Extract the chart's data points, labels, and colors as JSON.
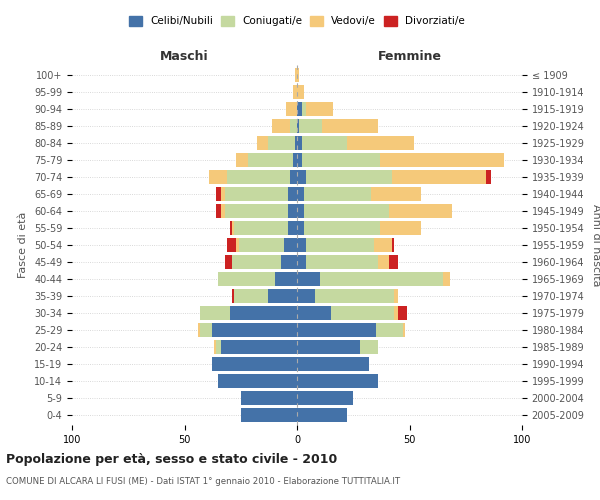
{
  "age_groups": [
    "0-4",
    "5-9",
    "10-14",
    "15-19",
    "20-24",
    "25-29",
    "30-34",
    "35-39",
    "40-44",
    "45-49",
    "50-54",
    "55-59",
    "60-64",
    "65-69",
    "70-74",
    "75-79",
    "80-84",
    "85-89",
    "90-94",
    "95-99",
    "100+"
  ],
  "birth_years": [
    "2005-2009",
    "2000-2004",
    "1995-1999",
    "1990-1994",
    "1985-1989",
    "1980-1984",
    "1975-1979",
    "1970-1974",
    "1965-1969",
    "1960-1964",
    "1955-1959",
    "1950-1954",
    "1945-1949",
    "1940-1944",
    "1935-1939",
    "1930-1934",
    "1925-1929",
    "1920-1924",
    "1915-1919",
    "1910-1914",
    "≤ 1909"
  ],
  "colors": {
    "celibi": "#4472a8",
    "coniugati": "#c5d9a0",
    "vedovi": "#f5c97a",
    "divorziati": "#cc2222"
  },
  "males": {
    "celibi": [
      25,
      25,
      35,
      38,
      34,
      38,
      30,
      13,
      10,
      7,
      6,
      4,
      4,
      4,
      3,
      2,
      1,
      0,
      0,
      0,
      0
    ],
    "coniugati": [
      0,
      0,
      0,
      0,
      2,
      5,
      13,
      15,
      25,
      22,
      20,
      24,
      28,
      28,
      28,
      20,
      12,
      3,
      0,
      0,
      0
    ],
    "vedovi": [
      0,
      0,
      0,
      0,
      1,
      1,
      0,
      0,
      0,
      0,
      1,
      1,
      2,
      2,
      8,
      5,
      5,
      8,
      5,
      2,
      1
    ],
    "divorziati": [
      0,
      0,
      0,
      0,
      0,
      0,
      0,
      1,
      0,
      3,
      4,
      1,
      2,
      2,
      0,
      0,
      0,
      0,
      0,
      0,
      0
    ]
  },
  "females": {
    "celibi": [
      22,
      25,
      36,
      32,
      28,
      35,
      15,
      8,
      10,
      4,
      4,
      3,
      3,
      3,
      4,
      2,
      2,
      1,
      2,
      0,
      0
    ],
    "coniugati": [
      0,
      0,
      0,
      0,
      8,
      12,
      28,
      35,
      55,
      32,
      30,
      34,
      38,
      30,
      38,
      35,
      20,
      10,
      2,
      0,
      0
    ],
    "vedovi": [
      0,
      0,
      0,
      0,
      0,
      1,
      2,
      2,
      3,
      5,
      8,
      18,
      28,
      22,
      42,
      55,
      30,
      25,
      12,
      3,
      1
    ],
    "divorziati": [
      0,
      0,
      0,
      0,
      0,
      0,
      4,
      0,
      0,
      4,
      1,
      0,
      0,
      0,
      2,
      0,
      0,
      0,
      0,
      0,
      0
    ]
  },
  "title": "Popolazione per età, sesso e stato civile - 2010",
  "subtitle": "COMUNE DI ALCARA LI FUSI (ME) - Dati ISTAT 1° gennaio 2010 - Elaborazione TUTTITALIA.IT",
  "ylabel_left": "Fasce di età",
  "ylabel_right": "Anni di nascita",
  "xlim": 100,
  "background_color": "#ffffff",
  "grid_color": "#cccccc"
}
